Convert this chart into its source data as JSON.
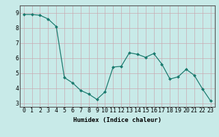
{
  "x": [
    0,
    1,
    2,
    3,
    4,
    5,
    6,
    7,
    8,
    9,
    10,
    11,
    12,
    13,
    14,
    15,
    16,
    17,
    18,
    19,
    20,
    21,
    22,
    23
  ],
  "y": [
    8.9,
    8.9,
    8.85,
    8.6,
    8.1,
    4.7,
    4.35,
    3.85,
    3.6,
    3.25,
    3.75,
    5.4,
    5.45,
    6.35,
    6.25,
    6.05,
    6.3,
    5.6,
    4.6,
    4.75,
    5.25,
    4.85,
    3.95,
    3.15
  ],
  "line_color": "#1a7a6e",
  "marker": "D",
  "marker_size": 2,
  "bg_color": "#c8eae8",
  "grid_color_major": "#b0d4d0",
  "grid_color_minor": "#d0e8e5",
  "xlabel": "Humidex (Indice chaleur)",
  "xlim": [
    -0.5,
    23.5
  ],
  "ylim": [
    2.75,
    9.5
  ],
  "yticks": [
    3,
    4,
    5,
    6,
    7,
    8,
    9
  ],
  "xticks": [
    0,
    1,
    2,
    3,
    4,
    5,
    6,
    7,
    8,
    9,
    10,
    11,
    12,
    13,
    14,
    15,
    16,
    17,
    18,
    19,
    20,
    21,
    22,
    23
  ],
  "xlabel_fontsize": 6.5,
  "tick_fontsize": 6,
  "linewidth": 0.9,
  "spine_color": "#555555"
}
